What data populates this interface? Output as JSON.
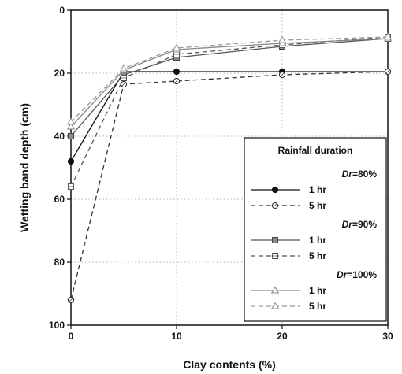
{
  "chart_data": {
    "type": "line",
    "xlabel": "Clay contents (%)",
    "ylabel": "Wetting band depth (cm)",
    "xlim": [
      0,
      30
    ],
    "ylim": [
      100,
      0
    ],
    "x_ticks": [
      0,
      10,
      20,
      30
    ],
    "y_ticks": [
      0,
      20,
      40,
      60,
      80,
      100
    ],
    "grid": true,
    "x": [
      0,
      5,
      10,
      20,
      30
    ],
    "legend": {
      "title": "Rainfall duration",
      "placement": "bottom-right",
      "groups": [
        {
          "label_italic": "Dr",
          "label_rest": "=80%",
          "entries": [
            {
              "label": "1 hr",
              "series": 0
            },
            {
              "label": "5 hr",
              "series": 1
            }
          ]
        },
        {
          "label_italic": "Dr",
          "label_rest": "=90%",
          "entries": [
            {
              "label": "1 hr",
              "series": 2
            },
            {
              "label": "5 hr",
              "series": 3
            }
          ]
        },
        {
          "label_italic": "Dr",
          "label_rest": "=100%",
          "entries": [
            {
              "label": "1 hr",
              "series": 4
            },
            {
              "label": "5 hr",
              "series": 5
            }
          ]
        }
      ]
    },
    "series": [
      {
        "name": "Dr=80% 1 hr",
        "values": [
          48,
          19.5,
          19.5,
          19.5,
          19.5
        ],
        "marker": "circle-filled",
        "dash": false,
        "color": "#111111"
      },
      {
        "name": "Dr=80% 5 hr",
        "values": [
          92,
          23.5,
          22.5,
          20.5,
          19.5
        ],
        "marker": "circle-open",
        "dash": true,
        "color": "#333333"
      },
      {
        "name": "Dr=90% 1 hr",
        "values": [
          40,
          20.5,
          15,
          11.5,
          9
        ],
        "marker": "square-gray",
        "dash": false,
        "color": "#555555"
      },
      {
        "name": "Dr=90% 5 hr",
        "values": [
          56,
          21.5,
          14,
          11,
          8.5
        ],
        "marker": "square-open",
        "dash": true,
        "color": "#555555"
      },
      {
        "name": "Dr=100% 1 hr",
        "values": [
          37,
          19,
          12.5,
          10.5,
          9
        ],
        "marker": "triangle-open",
        "dash": false,
        "color": "#888888"
      },
      {
        "name": "Dr=100% 5 hr",
        "values": [
          35.5,
          18.5,
          12,
          9.5,
          8.5
        ],
        "marker": "triangle-open",
        "dash": true,
        "color": "#999999"
      }
    ]
  }
}
